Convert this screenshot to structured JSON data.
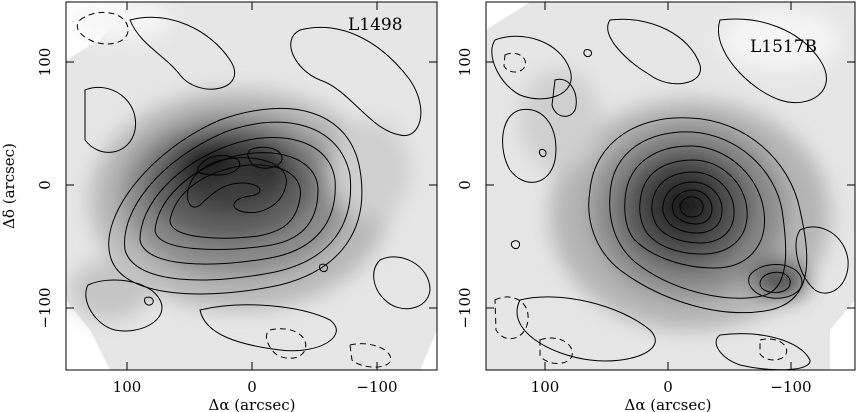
{
  "panels": [
    {
      "name": "L1498",
      "x_tick_labels": [
        "100",
        "0",
        "−100"
      ],
      "y_tick_labels": [
        "100",
        "0",
        "−100"
      ],
      "xlabel": "Δα (arcsec)",
      "ylabel": "Δδ (arcsec)"
    },
    {
      "name": "L1517B",
      "x_tick_labels": [
        "100",
        "0",
        "−100"
      ],
      "y_tick_labels": [
        "100",
        "0",
        "−100"
      ],
      "xlabel": "Δα (arcsec)",
      "ylabel": ""
    }
  ],
  "colors": {
    "background": "#ffffff",
    "ink": "#000000",
    "map_light": "#efefef",
    "map_dark": "#1a1a1a"
  }
}
